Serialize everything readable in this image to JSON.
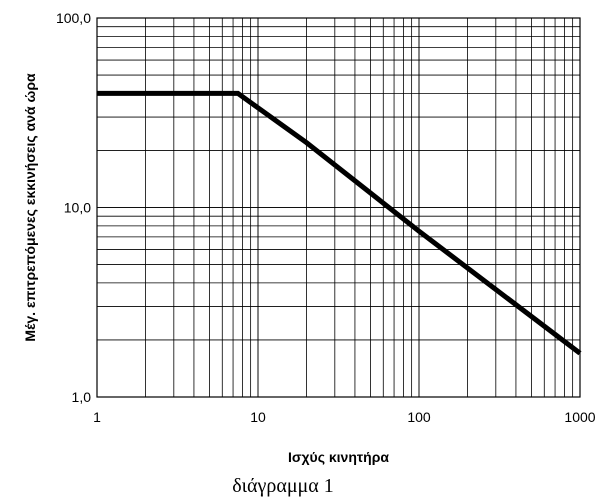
{
  "chart_data": {
    "type": "line",
    "title": "",
    "xlabel": "Ισχύς κινητήρα",
    "ylabel": "Μέγ. επιτρεπόμενες εκκινήσεις ανά ώρα",
    "x_scale": "log",
    "y_scale": "log",
    "xlim": [
      1,
      1000
    ],
    "ylim": [
      1,
      100
    ],
    "grid": true,
    "x_ticks": [
      {
        "value": 1,
        "label": "1"
      },
      {
        "value": 10,
        "label": "10"
      },
      {
        "value": 100,
        "label": "100"
      },
      {
        "value": 1000,
        "label": "1000"
      }
    ],
    "y_ticks": [
      {
        "value": 1,
        "label": "1,0"
      },
      {
        "value": 10,
        "label": "10,0"
      },
      {
        "value": 100,
        "label": "100,0"
      }
    ],
    "series": [
      {
        "color": "#000000",
        "points": [
          {
            "x": 1,
            "y": 40
          },
          {
            "x": 7.5,
            "y": 40
          },
          {
            "x": 20,
            "y": 22
          },
          {
            "x": 100,
            "y": 7.5
          },
          {
            "x": 1000,
            "y": 1.7
          }
        ]
      }
    ],
    "caption": "διάγραμμα 1"
  }
}
